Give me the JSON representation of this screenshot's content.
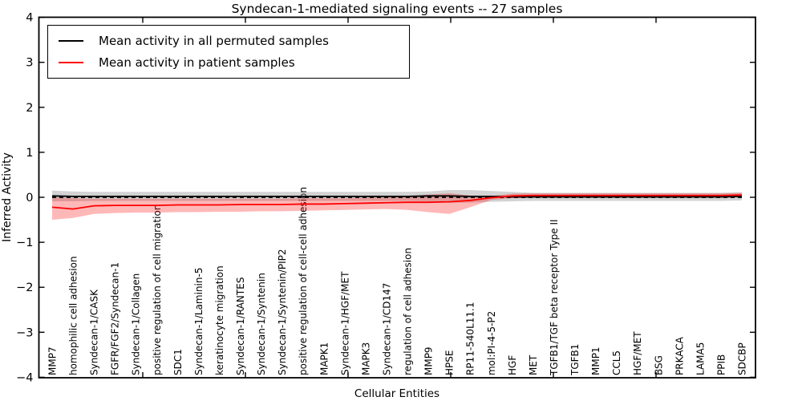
{
  "title": "Syndecan-1-mediated signaling events -- 27 samples",
  "axes": {
    "xlabel": "Cellular Entities",
    "ylabel": "Inferred Activity",
    "yticks": [
      "4",
      "3",
      "2",
      "1",
      "0",
      "−1",
      "−2",
      "−3",
      "−4"
    ]
  },
  "legend": {
    "items": [
      {
        "label": "Mean activity in all permuted samples",
        "color": "#000000"
      },
      {
        "label": "Mean activity in patient samples",
        "color": "#ff0000"
      }
    ]
  },
  "colors": {
    "background": "#ffffff",
    "axis": "#000000",
    "permuted_line": "#000000",
    "patient_line": "#ff0000",
    "permuted_band": "#808080",
    "patient_band": "#ff0000",
    "zero_line": "#000000"
  },
  "chart_data": {
    "type": "line",
    "title": "Syndecan-1-mediated signaling events -- 27 samples",
    "xlabel": "Cellular Entities",
    "ylabel": "Inferred Activity",
    "ylim": [
      -4,
      4
    ],
    "grid": false,
    "legend_position": "upper left",
    "categories": [
      "MMP7",
      "homophilic cell adhesion",
      "Syndecan-1/CASK",
      "FGFR/FGF2/Syndecan-1",
      "Syndecan-1/Collagen",
      "positive regulation of cell migration",
      "SDC1",
      "Syndecan-1/Laminin-5",
      "keratinocyte migration",
      "Syndecan-1/RANTES",
      "Syndecan-1/Syntenin",
      "Syndecan-1/Syntenin/PIP2",
      "positive regulation of cell-cell adhesion",
      "MAPK1",
      "Syndecan-1/HGF/MET",
      "MAPK3",
      "Syndecan-1/CD147",
      "regulation of cell adhesion",
      "MMP9",
      "HPSE",
      "RP11-540L11.1",
      "mol:PI-4-5-P2",
      "HGF",
      "MET",
      "TGFB1/TGF beta receptor Type II",
      "TGFB1",
      "MMP1",
      "CCL5",
      "HGF/MET",
      "BSG",
      "PRKACA",
      "LAMA5",
      "PPIB",
      "SDCBP"
    ],
    "series": [
      {
        "name": "Mean activity in all permuted samples",
        "color": "#000000",
        "values": [
          0.03,
          0.02,
          0.02,
          0.02,
          0.02,
          0.02,
          0.02,
          0.02,
          0.02,
          0.02,
          0.02,
          0.02,
          0.02,
          0.02,
          0.02,
          0.02,
          0.02,
          0.02,
          0.03,
          0.03,
          0.02,
          0.02,
          0.01,
          0.01,
          0.01,
          0.01,
          0.01,
          0.01,
          0.01,
          0.01,
          0.01,
          0.01,
          0.01,
          0.02
        ]
      },
      {
        "name": "Mean activity in patient samples",
        "color": "#ff0000",
        "values": [
          -0.22,
          -0.26,
          -0.19,
          -0.18,
          -0.18,
          -0.18,
          -0.17,
          -0.17,
          -0.17,
          -0.16,
          -0.16,
          -0.16,
          -0.15,
          -0.15,
          -0.14,
          -0.13,
          -0.12,
          -0.11,
          -0.11,
          -0.1,
          -0.07,
          -0.01,
          0.03,
          0.04,
          0.04,
          0.04,
          0.04,
          0.04,
          0.04,
          0.04,
          0.04,
          0.04,
          0.04,
          0.05
        ]
      }
    ],
    "bands": [
      {
        "name": "permuted-samples-band",
        "color": "#808080",
        "opacity": 0.35,
        "upper": [
          0.15,
          0.13,
          0.12,
          0.12,
          0.12,
          0.12,
          0.12,
          0.12,
          0.12,
          0.12,
          0.12,
          0.12,
          0.12,
          0.12,
          0.12,
          0.12,
          0.12,
          0.12,
          0.13,
          0.16,
          0.16,
          0.14,
          0.12,
          0.1,
          0.1,
          0.1,
          0.1,
          0.1,
          0.1,
          0.1,
          0.1,
          0.1,
          0.1,
          0.11
        ],
        "lower": [
          -0.09,
          -0.09,
          -0.08,
          -0.08,
          -0.08,
          -0.08,
          -0.08,
          -0.08,
          -0.08,
          -0.08,
          -0.08,
          -0.08,
          -0.08,
          -0.08,
          -0.08,
          -0.08,
          -0.08,
          -0.08,
          -0.09,
          -0.12,
          -0.12,
          -0.1,
          -0.09,
          -0.08,
          -0.08,
          -0.08,
          -0.08,
          -0.08,
          -0.08,
          -0.08,
          -0.08,
          -0.08,
          -0.08,
          -0.07
        ]
      },
      {
        "name": "patient-samples-band",
        "color": "#ff0000",
        "opacity": 0.28,
        "upper": [
          0.0,
          -0.02,
          -0.03,
          -0.03,
          -0.03,
          -0.03,
          -0.03,
          -0.03,
          -0.03,
          -0.03,
          -0.03,
          -0.03,
          -0.02,
          -0.02,
          -0.02,
          -0.01,
          0.0,
          0.02,
          0.06,
          0.09,
          0.04,
          0.03,
          0.08,
          0.09,
          0.09,
          0.09,
          0.09,
          0.09,
          0.09,
          0.09,
          0.09,
          0.09,
          0.09,
          0.1
        ],
        "lower": [
          -0.5,
          -0.46,
          -0.37,
          -0.35,
          -0.34,
          -0.34,
          -0.33,
          -0.33,
          -0.32,
          -0.32,
          -0.31,
          -0.31,
          -0.3,
          -0.29,
          -0.28,
          -0.27,
          -0.26,
          -0.28,
          -0.33,
          -0.37,
          -0.22,
          -0.06,
          -0.02,
          -0.01,
          -0.01,
          -0.01,
          -0.01,
          -0.01,
          -0.01,
          -0.01,
          -0.01,
          -0.01,
          -0.01,
          0.0
        ]
      }
    ],
    "zero_line": {
      "y": 0,
      "style": "dashed",
      "color": "#000000"
    }
  }
}
